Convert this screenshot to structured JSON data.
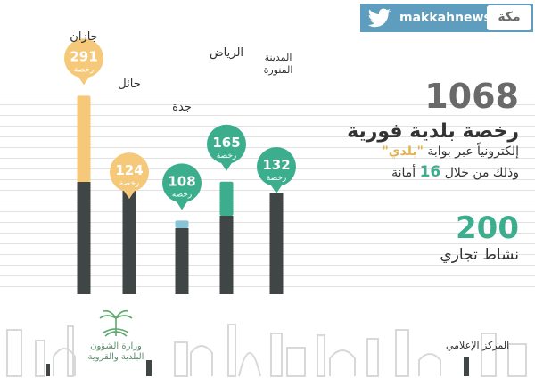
{
  "chart_data": {
    "type": "bar",
    "stacked": true,
    "categories": [
      "جازان",
      "حائل",
      "جدة",
      "الرياض",
      "المدينة المنورة"
    ],
    "values": [
      291,
      124,
      108,
      165,
      132
    ],
    "unit_label": "رخصة",
    "colors": {
      "top": [
        "#f5c979",
        "#3cae8d",
        "#86c4d6",
        "#3cae8d",
        "#f5c979"
      ],
      "base": "#404546",
      "bubble": [
        "#f5c979",
        "#f5c979",
        "#3cae8d",
        "#3cae8d",
        "#3cae8d"
      ]
    }
  },
  "branding": {
    "twitter_handle": "makkahnews",
    "brand_name": "مكة"
  },
  "stats": {
    "total_licenses": "1068",
    "line1": "رخصة بلدية فورية",
    "line2_before": "إلكترونياً عبر بوابة ",
    "line2_portal": "\"بلدي\"",
    "line3_before": "وذلك من خلال ",
    "line3_number": "16",
    "line3_after": " أمانة",
    "activities": "200",
    "activities_label": "نشاط تجاري"
  },
  "footer": {
    "ministry_line1": "وزارة الشؤون",
    "ministry_line2": "البلدية والقروية",
    "media_center": "المركز الإعلامي"
  }
}
